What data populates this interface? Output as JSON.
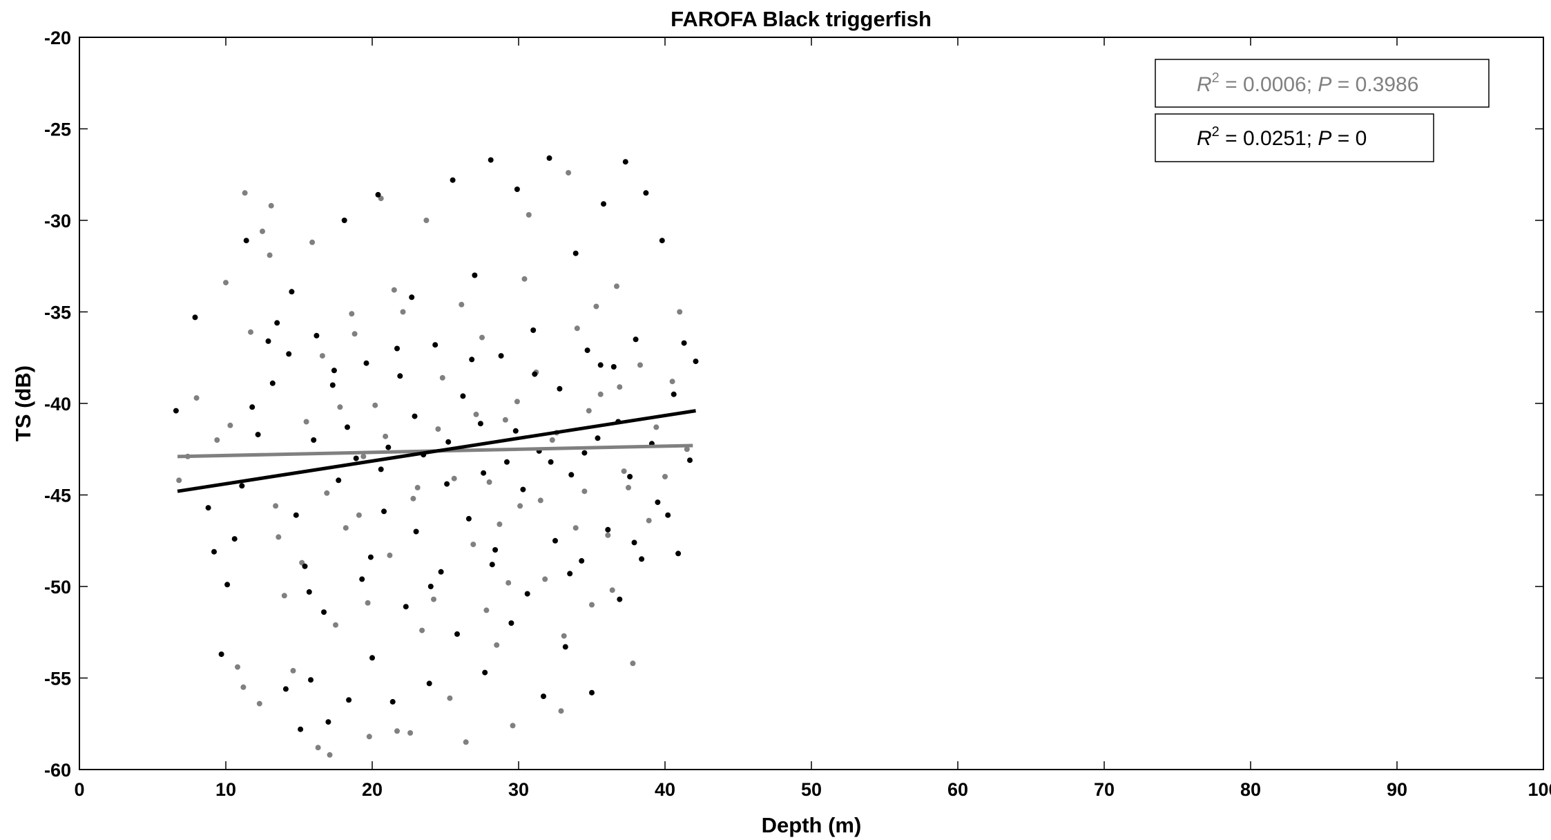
{
  "colors": {
    "black": "#000000",
    "gray": "#808080",
    "background": "#ffffff"
  },
  "chart_data": {
    "type": "scatter",
    "title": "FAROFA Black triggerfish",
    "xlabel": "Depth (m)",
    "ylabel": "TS (dB)",
    "xlim": [
      0,
      100
    ],
    "ylim": [
      -60,
      -20
    ],
    "xticks": [
      0,
      10,
      20,
      30,
      40,
      50,
      60,
      70,
      80,
      90,
      100
    ],
    "yticks": [
      -60,
      -55,
      -50,
      -45,
      -40,
      -35,
      -30,
      -25,
      -20
    ],
    "grid": false,
    "legend_placement": "top-right",
    "series": [
      {
        "color": "#808080",
        "fit": {
          "x": [
            6.7,
            41.9
          ],
          "y": [
            -42.9,
            -42.3
          ]
        },
        "annotation": {
          "r2_label": "R",
          "r2_sup": "2",
          "r2_value": " = 0.0006; ",
          "p_label": "P",
          "p_value": " = 0.3986"
        },
        "points": [
          [
            6.8,
            -44.2
          ],
          [
            7.4,
            -42.9
          ],
          [
            8.0,
            -39.7
          ],
          [
            9.4,
            -42.0
          ],
          [
            10.0,
            -33.4
          ],
          [
            10.3,
            -41.2
          ],
          [
            10.8,
            -54.4
          ],
          [
            11.2,
            -55.5
          ],
          [
            11.3,
            -28.5
          ],
          [
            11.7,
            -36.1
          ],
          [
            12.3,
            -56.4
          ],
          [
            12.5,
            -30.6
          ],
          [
            13.0,
            -31.9
          ],
          [
            13.1,
            -29.2
          ],
          [
            13.6,
            -47.3
          ],
          [
            14.0,
            -50.5
          ],
          [
            14.6,
            -54.6
          ],
          [
            15.2,
            -48.7
          ],
          [
            15.9,
            -31.2
          ],
          [
            16.3,
            -58.8
          ],
          [
            16.6,
            -37.4
          ],
          [
            17.1,
            -59.2
          ],
          [
            17.5,
            -52.1
          ],
          [
            18.2,
            -46.8
          ],
          [
            18.8,
            -36.2
          ],
          [
            19.4,
            -42.9
          ],
          [
            19.8,
            -58.2
          ],
          [
            20.2,
            -40.1
          ],
          [
            20.6,
            -28.8
          ],
          [
            21.2,
            -48.3
          ],
          [
            21.7,
            -57.9
          ],
          [
            22.1,
            -35.0
          ],
          [
            22.6,
            -58.0
          ],
          [
            23.1,
            -44.6
          ],
          [
            23.7,
            -30.0
          ],
          [
            24.2,
            -50.7
          ],
          [
            24.8,
            -38.6
          ],
          [
            25.3,
            -56.1
          ],
          [
            25.9,
            -42.5
          ],
          [
            26.4,
            -58.5
          ],
          [
            26.9,
            -47.7
          ],
          [
            27.5,
            -36.4
          ],
          [
            28.0,
            -44.3
          ],
          [
            28.5,
            -53.2
          ],
          [
            29.1,
            -40.9
          ],
          [
            29.6,
            -57.6
          ],
          [
            30.1,
            -45.6
          ],
          [
            30.7,
            -29.7
          ],
          [
            31.2,
            -38.3
          ],
          [
            31.8,
            -49.6
          ],
          [
            32.3,
            -42.0
          ],
          [
            32.9,
            -56.8
          ],
          [
            33.4,
            -27.4
          ],
          [
            34.0,
            -35.9
          ],
          [
            34.5,
            -44.8
          ],
          [
            35.0,
            -51.0
          ],
          [
            35.6,
            -39.5
          ],
          [
            36.1,
            -47.2
          ],
          [
            36.7,
            -33.6
          ],
          [
            37.2,
            -43.7
          ],
          [
            37.8,
            -54.2
          ],
          [
            38.3,
            -37.9
          ],
          [
            38.9,
            -46.4
          ],
          [
            39.4,
            -41.3
          ],
          [
            40.0,
            -44.0
          ],
          [
            40.5,
            -38.8
          ],
          [
            41.0,
            -35.0
          ],
          [
            41.5,
            -42.5
          ],
          [
            15.5,
            -41.0
          ],
          [
            17.8,
            -40.2
          ],
          [
            20.9,
            -41.8
          ],
          [
            24.5,
            -41.4
          ],
          [
            27.1,
            -40.6
          ],
          [
            29.9,
            -39.9
          ],
          [
            32.6,
            -41.6
          ],
          [
            34.8,
            -40.4
          ],
          [
            36.9,
            -39.1
          ],
          [
            13.4,
            -45.6
          ],
          [
            16.9,
            -44.9
          ],
          [
            19.1,
            -46.1
          ],
          [
            22.8,
            -45.2
          ],
          [
            25.6,
            -44.1
          ],
          [
            28.7,
            -46.6
          ],
          [
            31.5,
            -45.3
          ],
          [
            33.9,
            -46.8
          ],
          [
            37.5,
            -44.6
          ],
          [
            18.6,
            -35.1
          ],
          [
            21.5,
            -33.8
          ],
          [
            26.1,
            -34.6
          ],
          [
            30.4,
            -33.2
          ],
          [
            35.3,
            -34.7
          ],
          [
            23.4,
            -52.4
          ],
          [
            27.8,
            -51.3
          ],
          [
            33.1,
            -52.7
          ],
          [
            19.7,
            -50.9
          ],
          [
            29.3,
            -49.8
          ],
          [
            36.4,
            -50.2
          ]
        ]
      },
      {
        "color": "#000000",
        "fit": {
          "x": [
            6.7,
            42.1
          ],
          "y": [
            -44.8,
            -40.4
          ]
        },
        "annotation": {
          "r2_label": "R",
          "r2_sup": "2",
          "r2_value": " = 0.0251; ",
          "p_label": "P",
          "p_value": " = 0"
        },
        "points": [
          [
            6.6,
            -40.4
          ],
          [
            7.9,
            -35.3
          ],
          [
            8.8,
            -45.7
          ],
          [
            9.2,
            -48.1
          ],
          [
            9.7,
            -53.7
          ],
          [
            10.1,
            -49.9
          ],
          [
            10.6,
            -47.4
          ],
          [
            11.1,
            -44.5
          ],
          [
            11.4,
            -31.1
          ],
          [
            11.8,
            -40.2
          ],
          [
            12.2,
            -41.7
          ],
          [
            12.9,
            -36.6
          ],
          [
            13.2,
            -38.9
          ],
          [
            13.5,
            -35.6
          ],
          [
            14.1,
            -55.6
          ],
          [
            14.5,
            -33.9
          ],
          [
            14.8,
            -46.1
          ],
          [
            15.1,
            -57.8
          ],
          [
            15.4,
            -48.9
          ],
          [
            15.8,
            -55.1
          ],
          [
            16.2,
            -36.3
          ],
          [
            16.7,
            -51.4
          ],
          [
            17.0,
            -57.4
          ],
          [
            17.3,
            -39.0
          ],
          [
            17.7,
            -44.2
          ],
          [
            18.1,
            -30.0
          ],
          [
            18.4,
            -56.2
          ],
          [
            18.9,
            -43.0
          ],
          [
            19.3,
            -49.6
          ],
          [
            19.6,
            -37.8
          ],
          [
            20.0,
            -53.9
          ],
          [
            20.4,
            -28.6
          ],
          [
            20.8,
            -45.9
          ],
          [
            21.1,
            -42.4
          ],
          [
            21.4,
            -56.3
          ],
          [
            21.9,
            -38.5
          ],
          [
            22.3,
            -51.1
          ],
          [
            22.7,
            -34.2
          ],
          [
            23.0,
            -47.0
          ],
          [
            23.5,
            -42.8
          ],
          [
            23.9,
            -55.3
          ],
          [
            24.3,
            -36.8
          ],
          [
            24.7,
            -49.2
          ],
          [
            25.1,
            -44.4
          ],
          [
            25.5,
            -27.8
          ],
          [
            25.8,
            -52.6
          ],
          [
            26.2,
            -39.6
          ],
          [
            26.6,
            -46.3
          ],
          [
            27.0,
            -33.0
          ],
          [
            27.4,
            -41.1
          ],
          [
            27.7,
            -54.7
          ],
          [
            28.1,
            -26.7
          ],
          [
            28.4,
            -48.0
          ],
          [
            28.8,
            -37.4
          ],
          [
            29.2,
            -43.2
          ],
          [
            29.5,
            -52.0
          ],
          [
            29.9,
            -28.3
          ],
          [
            30.3,
            -44.7
          ],
          [
            30.6,
            -50.4
          ],
          [
            31.0,
            -36.0
          ],
          [
            31.4,
            -42.6
          ],
          [
            31.7,
            -56.0
          ],
          [
            32.1,
            -26.6
          ],
          [
            32.5,
            -47.5
          ],
          [
            32.8,
            -39.2
          ],
          [
            33.2,
            -53.3
          ],
          [
            33.6,
            -43.9
          ],
          [
            33.9,
            -31.8
          ],
          [
            34.3,
            -48.6
          ],
          [
            34.7,
            -37.1
          ],
          [
            35.0,
            -55.8
          ],
          [
            35.4,
            -41.9
          ],
          [
            35.8,
            -29.1
          ],
          [
            36.1,
            -46.9
          ],
          [
            36.5,
            -38.0
          ],
          [
            36.9,
            -50.7
          ],
          [
            37.3,
            -26.8
          ],
          [
            37.6,
            -44.0
          ],
          [
            38.0,
            -36.5
          ],
          [
            38.4,
            -48.5
          ],
          [
            38.7,
            -28.5
          ],
          [
            39.1,
            -42.2
          ],
          [
            39.5,
            -45.4
          ],
          [
            39.8,
            -31.1
          ],
          [
            40.2,
            -46.1
          ],
          [
            40.6,
            -39.5
          ],
          [
            40.9,
            -48.2
          ],
          [
            41.3,
            -36.7
          ],
          [
            41.7,
            -43.1
          ],
          [
            42.1,
            -37.7
          ],
          [
            16.0,
            -42.0
          ],
          [
            18.3,
            -41.3
          ],
          [
            20.6,
            -43.6
          ],
          [
            22.9,
            -40.7
          ],
          [
            25.2,
            -42.1
          ],
          [
            27.6,
            -43.8
          ],
          [
            29.8,
            -41.5
          ],
          [
            32.2,
            -43.2
          ],
          [
            34.5,
            -42.7
          ],
          [
            36.8,
            -41.0
          ],
          [
            14.3,
            -37.3
          ],
          [
            17.4,
            -38.2
          ],
          [
            21.7,
            -37.0
          ],
          [
            26.8,
            -37.6
          ],
          [
            31.1,
            -38.4
          ],
          [
            35.6,
            -37.9
          ],
          [
            15.7,
            -50.3
          ],
          [
            19.9,
            -48.4
          ],
          [
            24.0,
            -50.0
          ],
          [
            28.2,
            -48.8
          ],
          [
            33.5,
            -49.3
          ],
          [
            37.9,
            -47.6
          ]
        ]
      }
    ]
  }
}
